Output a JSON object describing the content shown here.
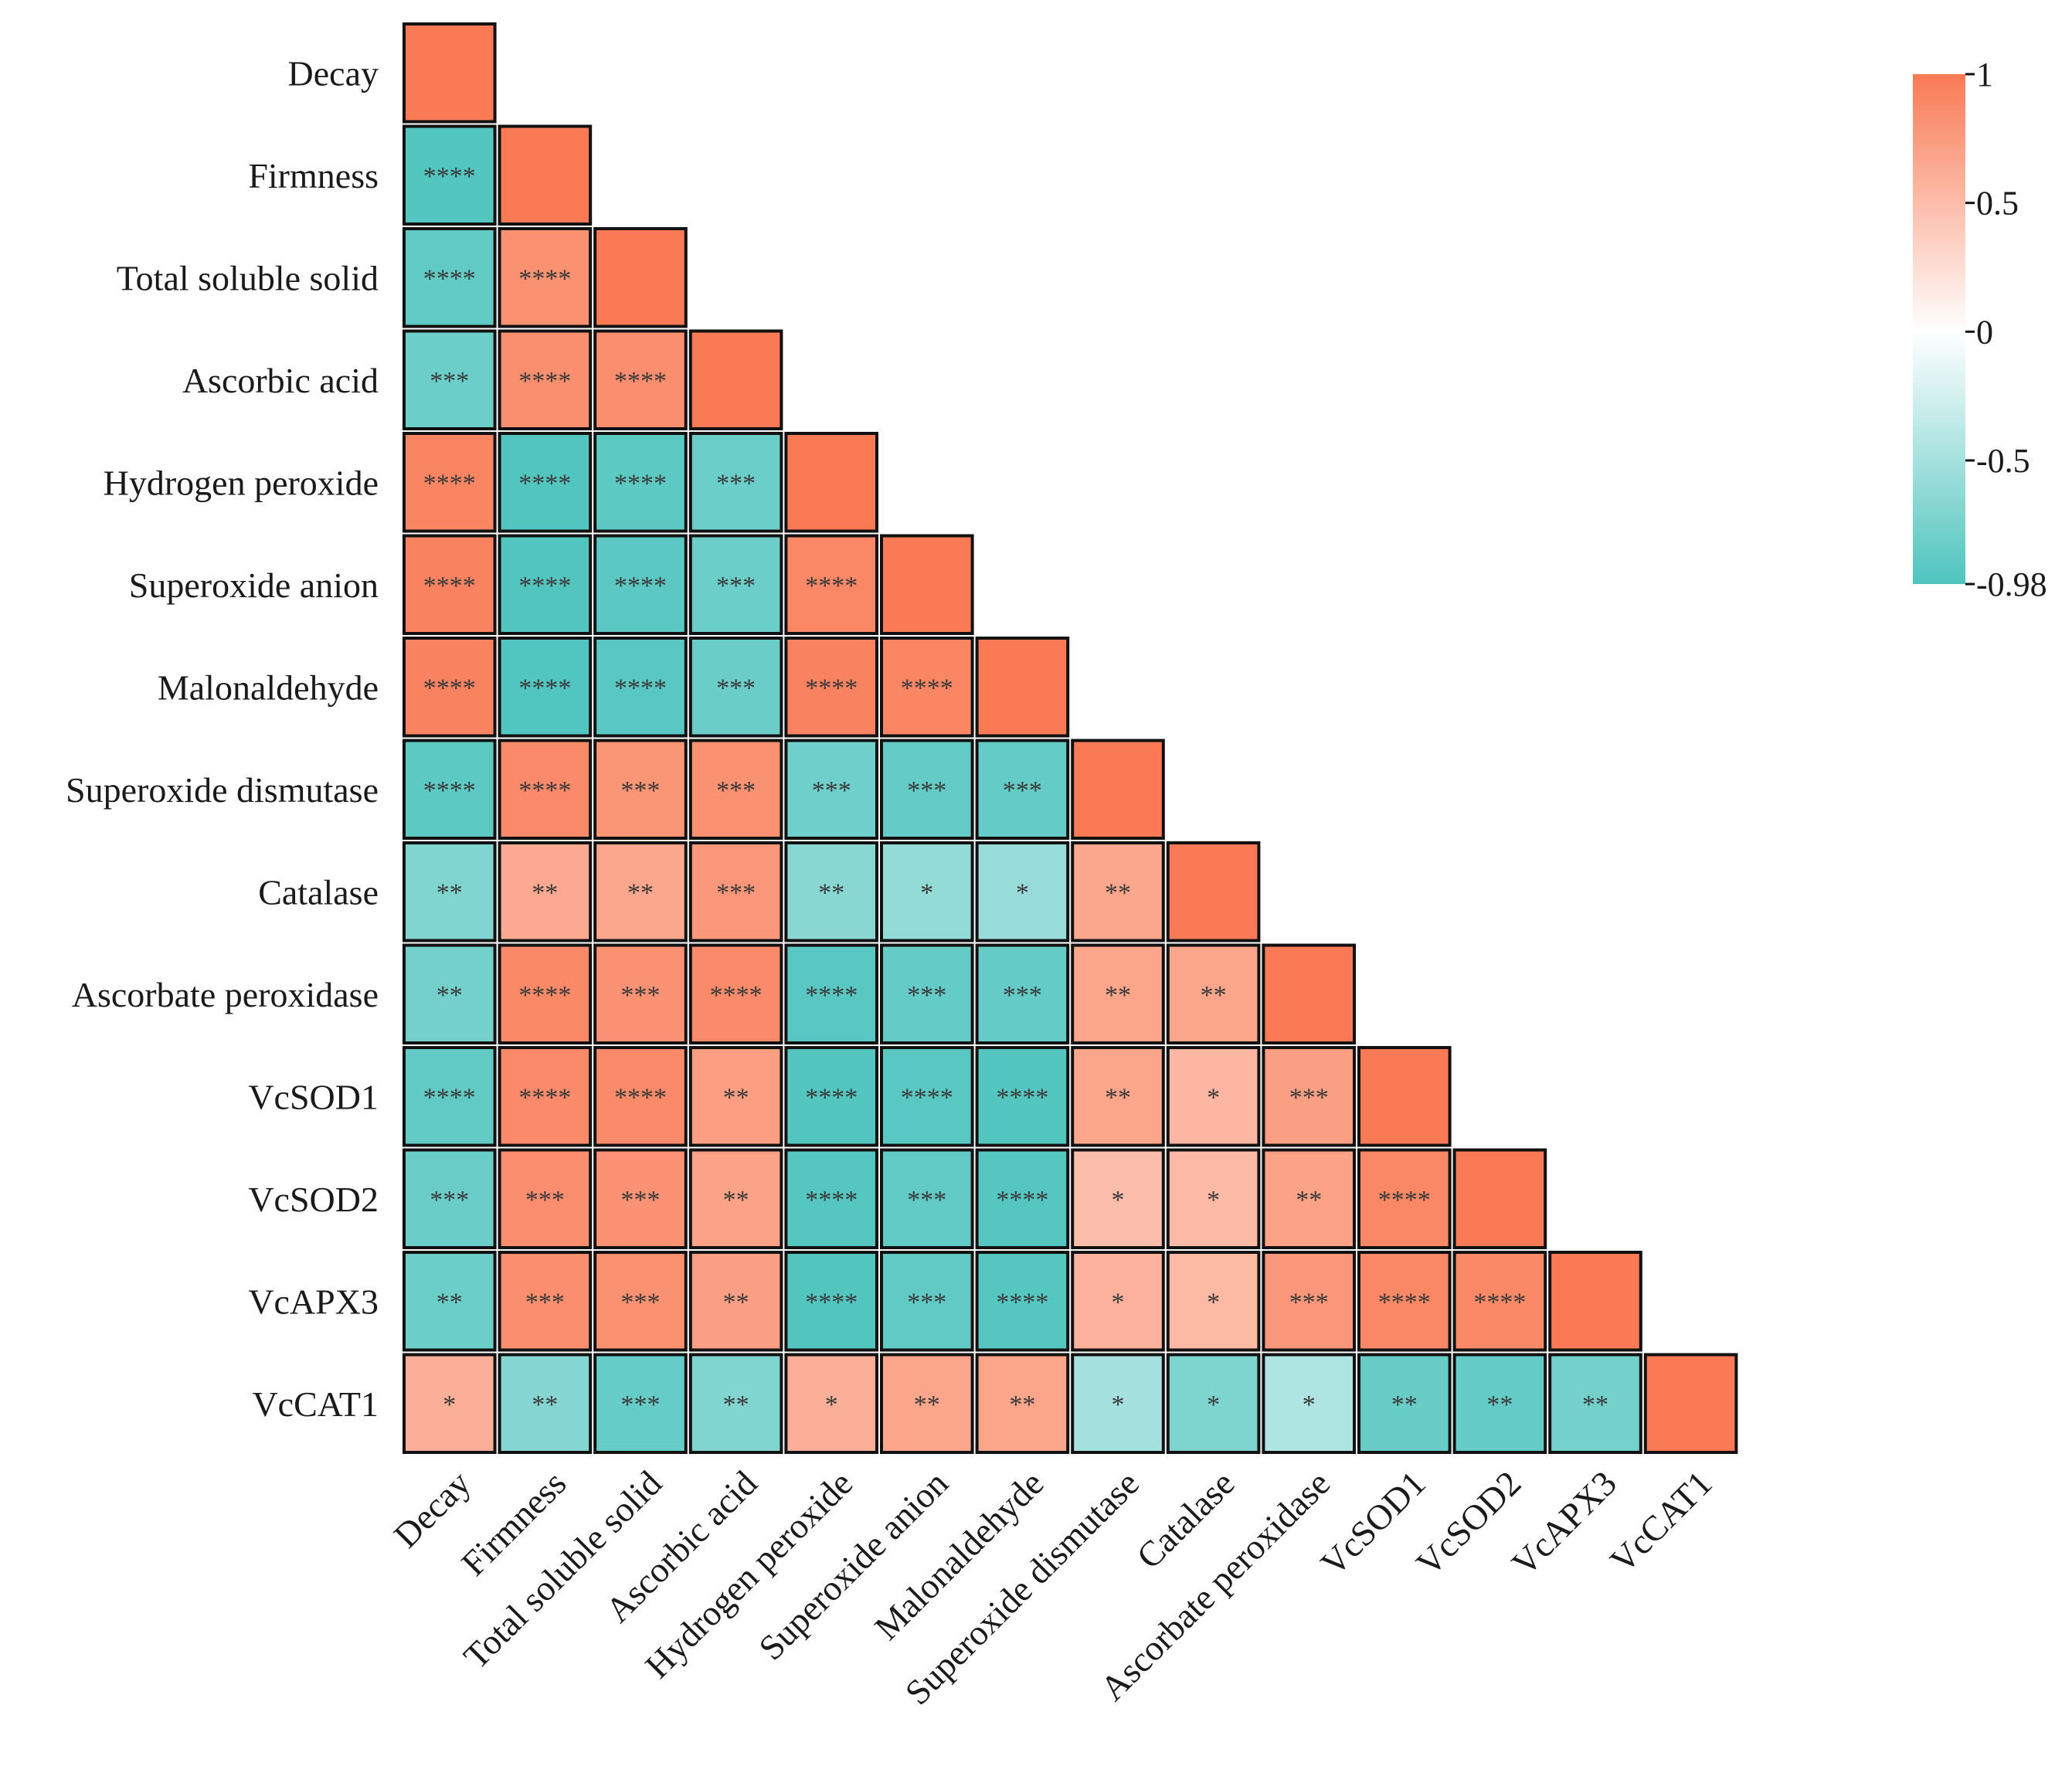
{
  "chart_data": {
    "type": "heatmap",
    "subtype": "lower-triangular-correlation",
    "variables": [
      "Decay",
      "Firmness",
      "Total soluble solid",
      "Ascorbic acid",
      "Hydrogen peroxide",
      "Superoxide anion",
      "Malonaldehyde",
      "Superoxide dismutase",
      "Catalase",
      "Ascorbate peroxidase",
      "VcSOD1",
      "VcSOD2",
      "VcAPX3",
      "VcCAT1"
    ],
    "correlations": [
      [
        1.0
      ],
      [
        -0.95,
        1.0
      ],
      [
        -0.88,
        0.83,
        1.0
      ],
      [
        -0.82,
        0.84,
        0.85,
        1.0
      ],
      [
        0.92,
        -0.96,
        -0.9,
        -0.82,
        1.0
      ],
      [
        0.93,
        -0.96,
        -0.91,
        -0.82,
        0.9,
        1.0
      ],
      [
        0.93,
        -0.97,
        -0.92,
        -0.83,
        0.93,
        0.91,
        1.0
      ],
      [
        -0.9,
        0.88,
        0.8,
        0.83,
        -0.8,
        -0.86,
        -0.86,
        1.0
      ],
      [
        -0.7,
        0.65,
        0.66,
        0.78,
        -0.66,
        -0.6,
        -0.58,
        0.66,
        1.0
      ],
      [
        -0.78,
        0.89,
        0.82,
        0.87,
        -0.92,
        -0.86,
        -0.86,
        0.68,
        0.68,
        1.0
      ],
      [
        -0.88,
        0.88,
        0.87,
        0.73,
        -0.95,
        -0.92,
        -0.95,
        0.68,
        0.55,
        0.72,
        1.0
      ],
      [
        -0.83,
        0.85,
        0.82,
        0.7,
        -0.94,
        -0.88,
        -0.94,
        0.5,
        0.52,
        0.7,
        0.9,
        1.0
      ],
      [
        -0.82,
        0.85,
        0.83,
        0.72,
        -0.96,
        -0.88,
        -0.94,
        0.58,
        0.53,
        0.78,
        0.9,
        0.89,
        1.0
      ],
      [
        0.6,
        -0.68,
        -0.85,
        -0.7,
        0.6,
        0.68,
        0.68,
        -0.5,
        -0.72,
        -0.45,
        -0.84,
        -0.86,
        -0.78,
        1.0
      ]
    ],
    "significance": [
      [
        ""
      ],
      [
        "****",
        ""
      ],
      [
        "****",
        "****",
        ""
      ],
      [
        "***",
        "****",
        "****",
        ""
      ],
      [
        "****",
        "****",
        "****",
        "***",
        ""
      ],
      [
        "****",
        "****",
        "****",
        "***",
        "****",
        ""
      ],
      [
        "****",
        "****",
        "****",
        "***",
        "****",
        "****",
        ""
      ],
      [
        "****",
        "****",
        "***",
        "***",
        "***",
        "***",
        "***",
        ""
      ],
      [
        "**",
        "**",
        "**",
        "***",
        "**",
        "*",
        "*",
        "**",
        ""
      ],
      [
        "**",
        "****",
        "***",
        "****",
        "****",
        "***",
        "***",
        "**",
        "**",
        ""
      ],
      [
        "****",
        "****",
        "****",
        "**",
        "****",
        "****",
        "****",
        "**",
        "*",
        "***",
        ""
      ],
      [
        "***",
        "***",
        "***",
        "**",
        "****",
        "***",
        "****",
        "*",
        "*",
        "**",
        "****",
        ""
      ],
      [
        "**",
        "***",
        "***",
        "**",
        "****",
        "***",
        "****",
        "*",
        "*",
        "***",
        "****",
        "****",
        ""
      ],
      [
        "*",
        "**",
        "***",
        "**",
        "*",
        "**",
        "**",
        "*",
        "*",
        "*",
        "**",
        "**",
        "**",
        ""
      ]
    ],
    "colorbar": {
      "min": -0.98,
      "max": 1,
      "ticks": [
        "1",
        "0.5",
        "0",
        "-0.5",
        "-0.98"
      ],
      "tick_values": [
        1,
        0.5,
        0,
        -0.5,
        -0.98
      ],
      "color_high": "#F97A54",
      "color_mid": "#FFFFFF",
      "color_low": "#4FC4BE",
      "placement": "top-right"
    },
    "title": "",
    "xlabel": "",
    "ylabel": ""
  }
}
